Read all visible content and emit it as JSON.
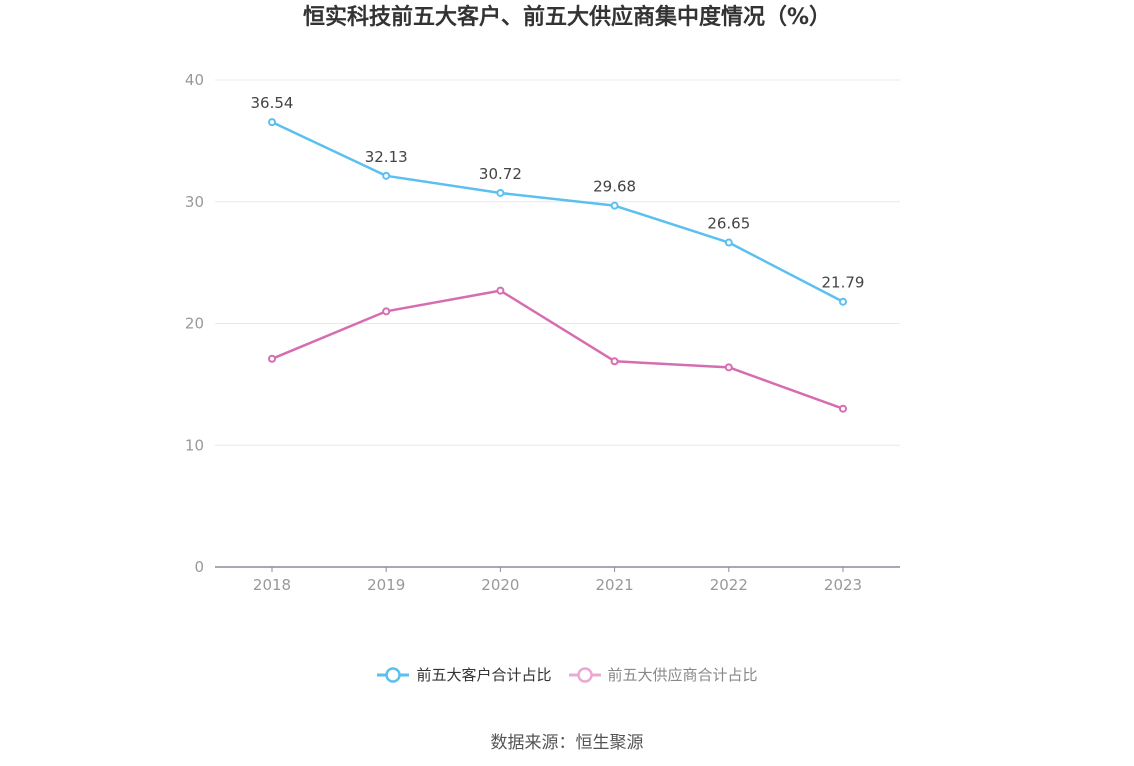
{
  "chart_data": {
    "type": "line",
    "title": "恒实科技前五大客户、前五大供应商集中度情况（%）",
    "categories": [
      "2018",
      "2019",
      "2020",
      "2021",
      "2022",
      "2023"
    ],
    "ylim": [
      0,
      40
    ],
    "yticks": [
      0,
      10,
      20,
      30,
      40
    ],
    "grid": true,
    "legend_position": "bottom",
    "series": [
      {
        "name": "前五大客户合计占比",
        "values": [
          36.54,
          32.13,
          30.72,
          29.68,
          26.65,
          21.79
        ],
        "labels": [
          "36.54",
          "32.13",
          "30.72",
          "29.68",
          "26.65",
          "21.79"
        ],
        "color": "#5bc0f0"
      },
      {
        "name": "前五大供应商合计占比",
        "values": [
          17.1,
          21.0,
          22.7,
          16.9,
          16.4,
          13.0
        ],
        "color": "#d66db0",
        "legend_color": "#eaa8d2"
      }
    ]
  },
  "source": "数据来源：恒生聚源"
}
